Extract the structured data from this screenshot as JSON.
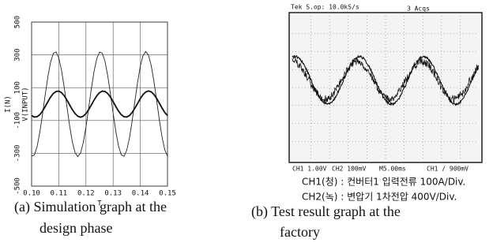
{
  "chart_data": {
    "type": "line",
    "x_label": "T",
    "y_label": "I(N)",
    "y2_label": "V(INPUT)",
    "x": [
      0.1,
      0.101,
      0.102,
      0.103,
      0.104,
      0.105,
      0.106,
      0.107,
      0.108,
      0.109,
      0.11,
      0.111,
      0.112,
      0.113,
      0.114,
      0.115,
      0.116,
      0.117,
      0.118,
      0.119,
      0.12,
      0.121,
      0.122,
      0.123,
      0.124,
      0.125,
      0.126,
      0.127,
      0.128,
      0.129,
      0.13,
      0.131,
      0.132,
      0.133,
      0.134,
      0.135,
      0.136,
      0.137,
      0.138,
      0.139,
      0.14,
      0.141,
      0.142,
      0.143,
      0.144,
      0.145,
      0.146,
      0.147,
      0.148,
      0.149,
      0.15
    ],
    "series": [
      {
        "color": "#222222",
        "width": 0.9,
        "values": [
          -317,
          -311,
          -261,
          -174,
          -64,
          56,
          168,
          257,
          309,
          318,
          282,
          207,
          102,
          -16,
          -133,
          -231,
          -296,
          -320,
          -299,
          -236,
          -140,
          -24,
          95,
          201,
          279,
          317,
          311,
          261,
          174,
          64,
          -56,
          -168,
          -257,
          -309,
          -318,
          -282,
          -207,
          -102,
          16,
          133,
          231,
          296,
          320,
          299,
          236,
          140,
          24,
          -95,
          -201,
          -279,
          -317
        ]
      },
      {
        "color": "#111111",
        "width": 1.8,
        "values": [
          -70,
          -79,
          -77,
          -65,
          -43,
          -15,
          15,
          43,
          65,
          77,
          79,
          70,
          51,
          25,
          -5,
          -34,
          -58,
          -74,
          -80,
          -74,
          -58,
          -34,
          -5,
          25,
          51,
          70,
          79,
          77,
          65,
          43,
          15,
          -15,
          -43,
          -65,
          -77,
          -79,
          -70,
          -51,
          -25,
          4,
          34,
          58,
          74,
          80,
          75,
          59,
          35,
          6,
          -24,
          -51,
          -70
        ]
      }
    ],
    "xlim": [
      0.1,
      0.15
    ],
    "xticks": [
      {
        "value": 0.1,
        "label": "0.10"
      },
      0.11,
      0.12,
      0.13,
      0.14,
      0.15
    ],
    "ylim": [
      -500,
      500
    ],
    "yticks": [
      -500,
      -300,
      -100,
      100,
      300,
      500
    ],
    "grid": true
  },
  "scope": {
    "header": "Tek S.op: 10.0kS/s",
    "acqs": "3 Acqs",
    "footer": [
      "CH1 1.00V",
      "CH2 100mV",
      "M5.00ms",
      "CH1 / 900mV"
    ],
    "ch1": "CH1(청) : 컨버터1 입력전류 100A/Div.",
    "ch2": "CH2(녹) : 변압기 1차전압 400V/Div."
  },
  "caption_a": [
    "(a)  Simulation graph at the",
    "design phase"
  ],
  "caption_b": [
    "(b)  Test result graph at the",
    "factory"
  ]
}
